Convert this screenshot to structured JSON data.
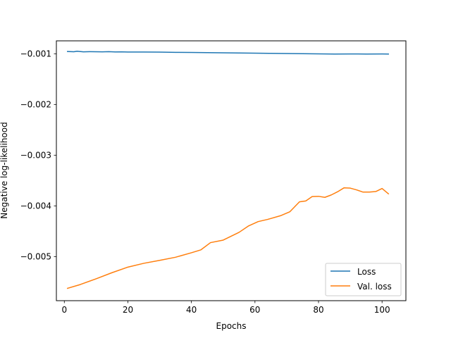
{
  "chart_data": {
    "type": "line",
    "title": "",
    "xlabel": "Epochs",
    "ylabel": "Negative log-likelihood",
    "xlim": [
      -2.5,
      107.5
    ],
    "ylim": [
      -0.00587,
      -0.000745
    ],
    "xticks": [
      0,
      20,
      40,
      60,
      80,
      100
    ],
    "xtick_labels": [
      "0",
      "20",
      "40",
      "60",
      "80",
      "100"
    ],
    "yticks": [
      -0.001,
      -0.002,
      -0.003,
      -0.004,
      -0.005
    ],
    "ytick_labels": [
      "−0.001",
      "−0.002",
      "−0.003",
      "−0.004",
      "−0.005"
    ],
    "grid": false,
    "legend_position": "lower-right",
    "series": [
      {
        "name": "Loss",
        "color": "#1f77b4",
        "x": [
          1,
          3,
          4,
          6,
          8,
          10,
          12,
          14,
          16,
          18,
          20,
          25,
          30,
          35,
          40,
          45,
          50,
          55,
          60,
          65,
          70,
          75,
          80,
          85,
          90,
          95,
          100,
          102
        ],
        "y": [
          -0.000955,
          -0.00096,
          -0.00095,
          -0.000962,
          -0.000958,
          -0.00096,
          -0.000962,
          -0.000958,
          -0.000963,
          -0.000962,
          -0.000965,
          -0.000966,
          -0.000968,
          -0.000972,
          -0.000975,
          -0.000978,
          -0.000982,
          -0.000985,
          -0.000988,
          -0.000992,
          -0.000995,
          -0.000998,
          -0.001002,
          -0.001005,
          -0.001003,
          -0.001005,
          -0.001003,
          -0.001005
        ]
      },
      {
        "name": "Val. loss",
        "color": "#ff7f0e",
        "x": [
          1,
          5,
          10,
          15,
          20,
          25,
          30,
          35,
          40,
          43,
          46,
          50,
          55,
          58,
          61,
          64,
          68,
          71,
          74,
          76,
          78,
          80,
          82,
          84,
          86,
          88,
          90,
          92,
          94,
          96,
          98,
          100,
          102
        ],
        "y": [
          -0.005627,
          -0.005552,
          -0.005438,
          -0.005318,
          -0.005208,
          -0.005133,
          -0.005075,
          -0.005013,
          -0.004925,
          -0.004867,
          -0.004725,
          -0.004675,
          -0.004522,
          -0.004395,
          -0.00431,
          -0.004267,
          -0.004195,
          -0.004115,
          -0.00392,
          -0.003903,
          -0.003817,
          -0.003812,
          -0.003832,
          -0.003785,
          -0.003722,
          -0.003645,
          -0.00365,
          -0.003685,
          -0.003728,
          -0.003728,
          -0.003718,
          -0.003657,
          -0.003762
        ]
      }
    ]
  }
}
